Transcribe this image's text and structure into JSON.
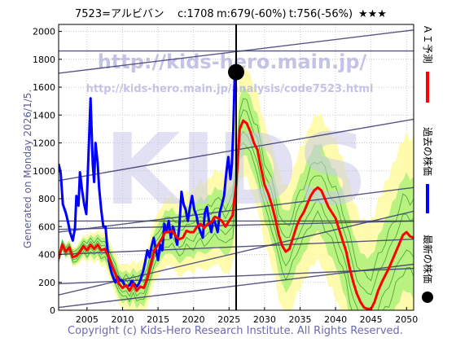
{
  "header": {
    "ticker": "7523=アルビバン",
    "current": "c:1708",
    "m_target": "m:679(-60%)",
    "t_target": "t:756(-56%)",
    "rating": "★★★"
  },
  "watermark": {
    "url_large": "http://kids-hero.main.jp/",
    "url_small": "http://kids-hero.main.jp/analysis/code7523.html",
    "logo": "KIDS"
  },
  "generated_on": "Generated on Monday 2026/1/5.",
  "copyright": "Copyright (c) Kids-Hero Research Institute. All Rights Reserved.",
  "legend": [
    {
      "name": "ＡＩ予測",
      "color": "#ff0000"
    },
    {
      "name": "過去の株価",
      "color": "#0000ff"
    },
    {
      "name": "最新の株価",
      "color": "#000000"
    }
  ],
  "colors": {
    "forecast": "#ff0000",
    "history": "#0000ff",
    "latest": "#000000",
    "band_outer": "#fffaa0",
    "band_inner": "#aef07a",
    "band_lines": "#2f9a2f",
    "trendlines": "#3a3a70",
    "watermark": "#bdbde6"
  },
  "chart_data": {
    "type": "line",
    "xlim": [
      2001,
      2051
    ],
    "ylim": [
      0,
      2050
    ],
    "x_ticks": [
      2005,
      2010,
      2015,
      2020,
      2025,
      2030,
      2035,
      2040,
      2045,
      2050
    ],
    "y_ticks": [
      0,
      200,
      400,
      600,
      800,
      1000,
      1200,
      1400,
      1600,
      1800,
      2000
    ],
    "grid": true,
    "latest_point": {
      "x": 2026.0,
      "y": 1708
    },
    "current_date_x": 2026.0,
    "series": [
      {
        "key": "history",
        "x": [
          2001.0,
          2001.3,
          2001.6,
          2002.0,
          2002.3,
          2002.6,
          2003.0,
          2003.3,
          2003.5,
          2003.8,
          2004.0,
          2004.3,
          2004.6,
          2004.9,
          2005.2,
          2005.5,
          2005.8,
          2006.0,
          2006.2,
          2006.5,
          2006.7,
          2007.0,
          2007.3,
          2007.6,
          2007.9,
          2008.2,
          2008.5,
          2008.8,
          2009.0,
          2009.3,
          2009.6,
          2010.0,
          2010.3,
          2010.6,
          2011.0,
          2011.3,
          2011.6,
          2012.0,
          2012.3,
          2012.6,
          2012.9,
          2013.2,
          2013.5,
          2013.8,
          2014.1,
          2014.4,
          2014.7,
          2015.0,
          2015.3,
          2015.6,
          2015.9,
          2016.2,
          2016.5,
          2016.8,
          2017.1,
          2017.4,
          2017.7,
          2018.0,
          2018.3,
          2018.6,
          2018.9,
          2019.2,
          2019.5,
          2019.8,
          2020.1,
          2020.4,
          2020.7,
          2021.0,
          2021.3,
          2021.6,
          2021.9,
          2022.2,
          2022.5,
          2022.8,
          2023.1,
          2023.4,
          2023.7,
          2024.0,
          2024.3,
          2024.6,
          2024.9,
          2025.2,
          2025.4,
          2025.6,
          2025.8,
          2026.0
        ],
        "y": [
          1050,
          980,
          760,
          700,
          640,
          560,
          500,
          590,
          820,
          750,
          990,
          860,
          760,
          690,
          1100,
          1520,
          1050,
          920,
          1200,
          1050,
          880,
          720,
          600,
          600,
          420,
          320,
          260,
          220,
          200,
          240,
          220,
          210,
          180,
          170,
          180,
          210,
          190,
          170,
          190,
          230,
          280,
          350,
          430,
          380,
          460,
          520,
          430,
          360,
          470,
          430,
          620,
          560,
          640,
          520,
          600,
          540,
          470,
          600,
          850,
          760,
          720,
          640,
          740,
          820,
          720,
          680,
          600,
          560,
          520,
          700,
          740,
          630,
          560,
          660,
          620,
          560,
          700,
          760,
          820,
          980,
          1100,
          940,
          1050,
          1300,
          1700,
          1708
        ]
      },
      {
        "key": "forecast",
        "x": [
          2001.0,
          2001.5,
          2002.0,
          2002.5,
          2003.0,
          2003.5,
          2004.0,
          2004.5,
          2005.0,
          2005.5,
          2006.0,
          2006.5,
          2007.0,
          2007.5,
          2008.0,
          2008.5,
          2009.0,
          2009.5,
          2010.0,
          2010.5,
          2011.0,
          2011.5,
          2012.0,
          2012.5,
          2013.0,
          2013.5,
          2014.0,
          2014.5,
          2015.0,
          2015.5,
          2016.0,
          2016.5,
          2017.0,
          2017.5,
          2018.0,
          2018.5,
          2019.0,
          2019.5,
          2020.0,
          2020.5,
          2021.0,
          2021.5,
          2022.0,
          2022.5,
          2023.0,
          2023.5,
          2024.0,
          2024.5,
          2025.0,
          2025.5,
          2026.0,
          2026.5,
          2027.0,
          2027.5,
          2028.0,
          2028.5,
          2029.0,
          2029.5,
          2030.0,
          2030.5,
          2031.0,
          2031.5,
          2032.0,
          2032.5,
          2033.0,
          2033.5,
          2034.0,
          2034.5,
          2035.0,
          2035.5,
          2036.0,
          2036.5,
          2037.0,
          2037.5,
          2038.0,
          2038.5,
          2039.0,
          2039.5,
          2040.0,
          2040.5,
          2041.0,
          2041.5,
          2042.0,
          2042.5,
          2043.0,
          2043.5,
          2044.0,
          2044.5,
          2045.0,
          2045.5,
          2046.0,
          2046.5,
          2047.0,
          2047.5,
          2048.0,
          2048.5,
          2049.0,
          2049.5,
          2050.0,
          2050.5,
          2051.0
        ],
        "y": [
          370,
          470,
          420,
          450,
          380,
          390,
          420,
          460,
          430,
          470,
          440,
          470,
          430,
          440,
          390,
          320,
          260,
          190,
          160,
          180,
          140,
          190,
          140,
          170,
          160,
          230,
          330,
          430,
          470,
          510,
          560,
          560,
          570,
          530,
          510,
          520,
          570,
          560,
          560,
          600,
          620,
          590,
          620,
          630,
          670,
          660,
          640,
          600,
          640,
          680,
          900,
          1300,
          1360,
          1340,
          1280,
          1200,
          1150,
          1020,
          900,
          840,
          760,
          660,
          540,
          460,
          420,
          440,
          520,
          600,
          660,
          700,
          760,
          820,
          860,
          880,
          860,
          800,
          740,
          700,
          660,
          580,
          500,
          420,
          300,
          200,
          120,
          60,
          20,
          10,
          10,
          60,
          140,
          200,
          250,
          300,
          360,
          420,
          480,
          540,
          560,
          530,
          520
        ]
      }
    ]
  }
}
